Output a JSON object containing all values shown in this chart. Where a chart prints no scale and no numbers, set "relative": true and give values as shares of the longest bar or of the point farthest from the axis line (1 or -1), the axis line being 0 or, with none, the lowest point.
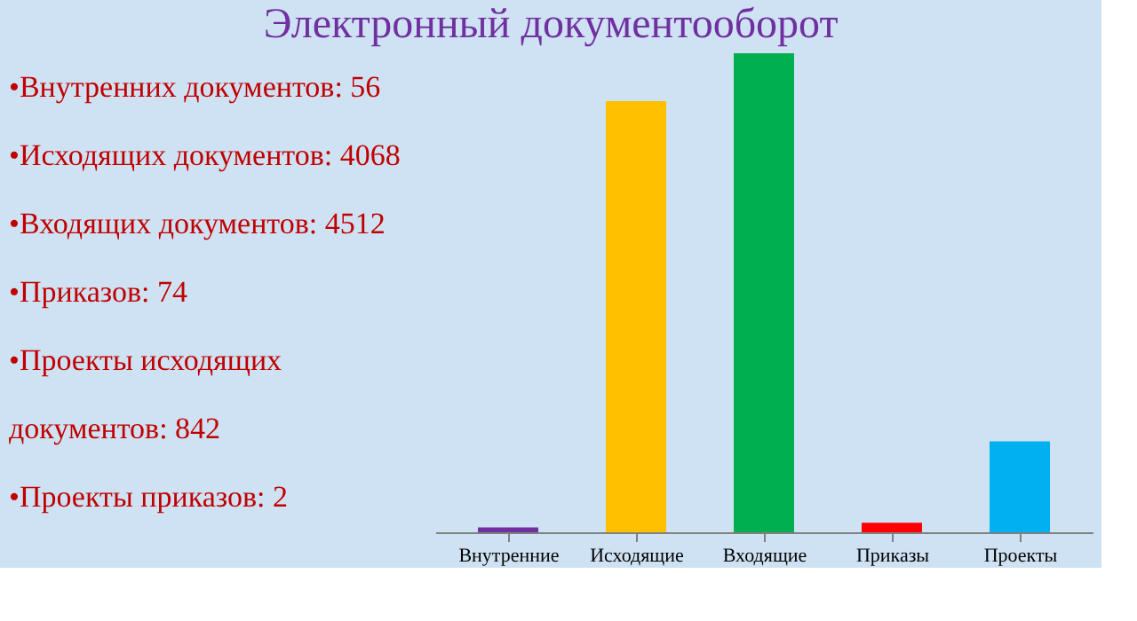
{
  "chart_data": {
    "type": "bar",
    "title": "Электронный документооборот",
    "categories": [
      "Внутренние",
      "Исходящие",
      "Входящие",
      "Приказы",
      "Проекты"
    ],
    "values": [
      0.01,
      0.9,
      1,
      0.02,
      0.19
    ],
    "colors": [
      "#7030a0",
      "#ffc000",
      "#00b050",
      "#ff0000",
      "#00b0f0"
    ],
    "relative": true,
    "annotations": [
      "•Внутренних документов: 56",
      "•Исходящих документов: 4068",
      "•Входящих документов: 4512",
      "•Приказов: 74",
      "•Проекты исходящих документов: 842",
      "•Проекты приказов: 2"
    ]
  }
}
